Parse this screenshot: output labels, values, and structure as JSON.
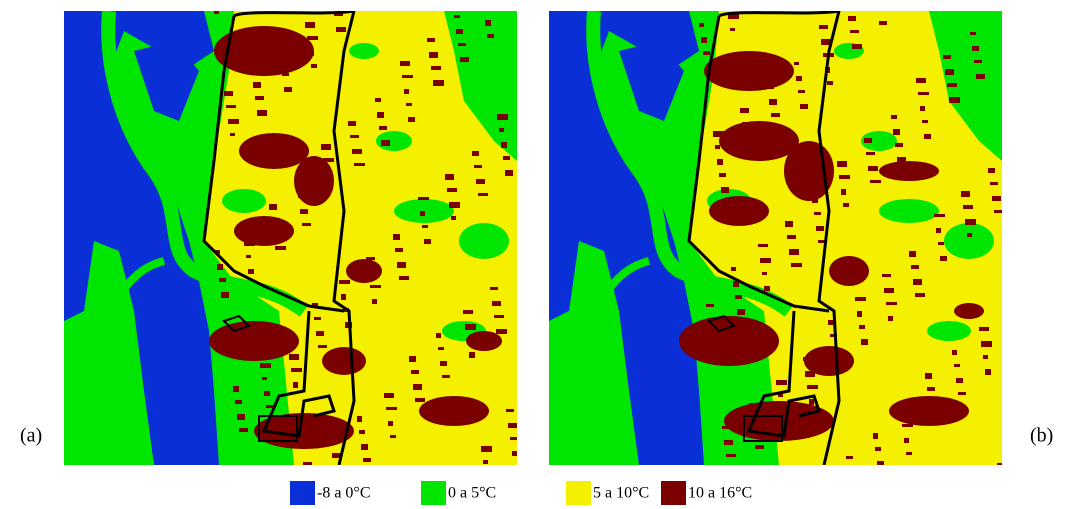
{
  "panels": [
    {
      "label": "(a)"
    },
    {
      "label": "(b)"
    }
  ],
  "legend": {
    "items": [
      {
        "label": "-8 a 0°C",
        "color": "#0a2fd6"
      },
      {
        "label": "0 a 5°C",
        "color": "#00e600"
      },
      {
        "label": "5 a 10°C",
        "color": "#f5ef00"
      },
      {
        "label": "10 a 16°C",
        "color": "#7a0000"
      }
    ]
  }
}
